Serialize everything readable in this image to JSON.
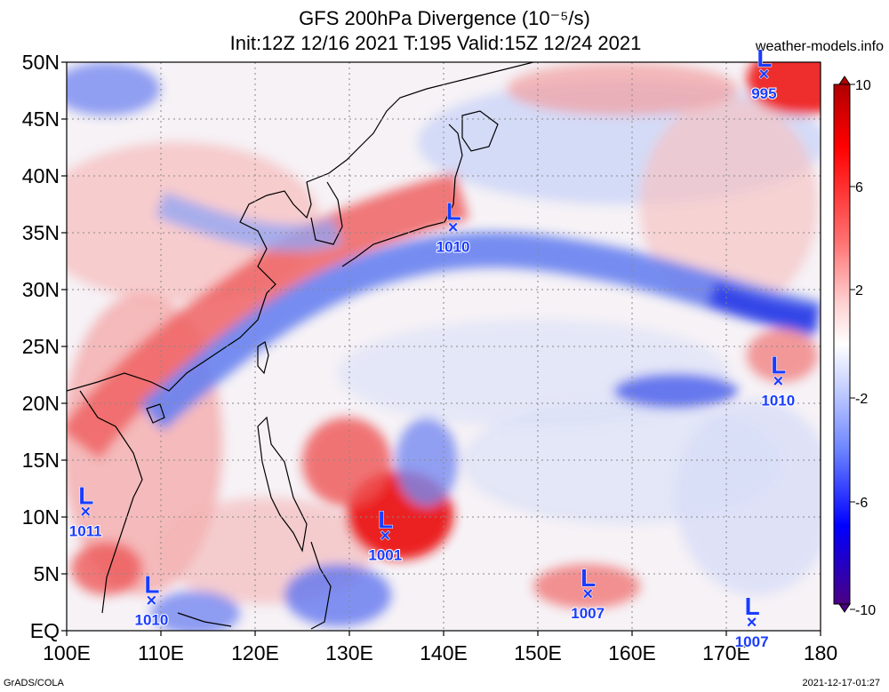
{
  "header": {
    "title": "GFS 200hPa Divergence (10⁻⁵/s)",
    "subtitle": "Init:12Z 12/16 2021 T:195 Valid:15Z 12/24 2021",
    "site": "weather-models.info"
  },
  "footer": {
    "left": "GrADS/COLA",
    "right": "2021-12-17-01:27"
  },
  "map": {
    "x_ticks": [
      "100E",
      "110E",
      "120E",
      "130E",
      "140E",
      "150E",
      "160E",
      "170E",
      "180"
    ],
    "y_ticks": [
      "EQ",
      "5N",
      "10N",
      "15N",
      "20N",
      "25N",
      "30N",
      "35N",
      "40N",
      "45N",
      "50N"
    ],
    "lon_range": [
      100,
      180
    ],
    "lat_range": [
      0,
      50
    ],
    "grid": true
  },
  "colorbar": {
    "labels": [
      "10",
      "6",
      "2",
      "-2",
      "-6",
      "-10"
    ],
    "colors": [
      "#4b0082",
      "#0000ff",
      "#4d6bff",
      "#a6b8ff",
      "#ffffff",
      "#ffb3b3",
      "#ff5a5a",
      "#ff0000",
      "#b00000"
    ]
  },
  "lows": [
    {
      "label": "L",
      "pressure": "1010",
      "lon": 141.0,
      "lat": 35.5
    },
    {
      "label": "L",
      "pressure": "995",
      "lon": 174.0,
      "lat": 49.0
    },
    {
      "label": "L",
      "pressure": "1010",
      "lon": 175.5,
      "lat": 22.0
    },
    {
      "label": "L",
      "pressure": "1011",
      "lon": 102.0,
      "lat": 10.5
    },
    {
      "label": "L",
      "pressure": "1001",
      "lon": 133.8,
      "lat": 8.4
    },
    {
      "label": "L",
      "pressure": "1010",
      "lon": 109.0,
      "lat": 2.7
    },
    {
      "label": "L",
      "pressure": "1007",
      "lon": 155.3,
      "lat": 3.3
    },
    {
      "label": "L",
      "pressure": "1007",
      "lon": 172.7,
      "lat": 0.8
    }
  ]
}
